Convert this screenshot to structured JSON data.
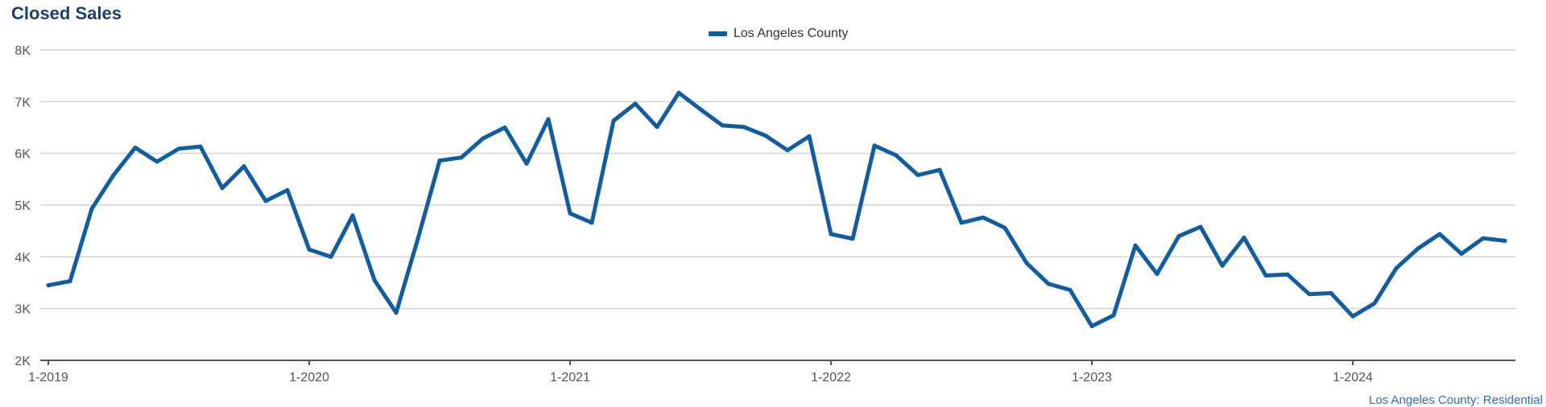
{
  "title": "Closed Sales",
  "source_label": "Los Angeles County: Residential",
  "colors": {
    "series": "#135d9e",
    "grid": "#c8c8c8",
    "axis": "#555555",
    "title": "#1e3d6b"
  },
  "chart_data": {
    "type": "line",
    "title": "Closed Sales",
    "xlabel": "",
    "ylabel": "",
    "ylim": [
      2000,
      8000
    ],
    "y_ticks": [
      2000,
      3000,
      4000,
      5000,
      6000,
      7000,
      8000
    ],
    "y_tick_labels": [
      "2K",
      "3K",
      "4K",
      "5K",
      "6K",
      "7K",
      "8K"
    ],
    "x_tick_labels": [
      "1-2019",
      "1-2020",
      "1-2021",
      "1-2022",
      "1-2023",
      "1-2024"
    ],
    "x_tick_months": [
      0,
      12,
      24,
      36,
      48,
      60
    ],
    "legend": "top-center",
    "series": [
      {
        "name": "Los Angeles County",
        "start": "1-2019",
        "values": [
          3450,
          3530,
          4930,
          5580,
          6110,
          5840,
          6090,
          6130,
          5330,
          5750,
          5080,
          5290,
          4140,
          4000,
          4800,
          3550,
          2920,
          4350,
          5860,
          5920,
          6290,
          6500,
          5800,
          6660,
          4840,
          4660,
          6630,
          6960,
          6510,
          7170,
          6850,
          6540,
          6510,
          6340,
          6060,
          6330,
          4440,
          4350,
          6150,
          5960,
          5580,
          5680,
          4660,
          4760,
          4560,
          3880,
          3480,
          3360,
          2660,
          2870,
          4220,
          3670,
          4400,
          4580,
          3830,
          4370,
          3640,
          3660,
          3280,
          3300,
          2850,
          3100,
          3780,
          4160,
          4440,
          4060,
          4360,
          4310
        ]
      }
    ]
  }
}
